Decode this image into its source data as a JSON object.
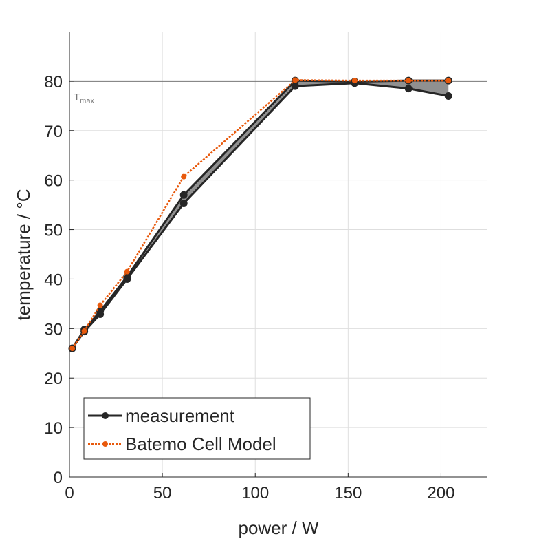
{
  "chart_data": {
    "type": "line",
    "xlabel": "power / W",
    "ylabel": "temperature / °C",
    "xlim": [
      0,
      225
    ],
    "ylim": [
      0,
      90
    ],
    "xticks": [
      0,
      50,
      100,
      150,
      200
    ],
    "yticks": [
      0,
      10,
      20,
      30,
      40,
      50,
      60,
      70,
      80
    ],
    "grid": true,
    "tmax": {
      "value": 80,
      "label": "T",
      "sub": "max"
    },
    "x": [
      1.5,
      8,
      16.5,
      31,
      61.5,
      121.5,
      153.5,
      182.5,
      204
    ],
    "series": [
      {
        "name": "measurement",
        "color": "#262626",
        "upper": [
          26,
          29.8,
          33.5,
          40.5,
          57.0,
          80.1,
          79.9,
          80.1,
          80.1
        ],
        "lower": [
          26,
          29.4,
          32.9,
          40.0,
          55.3,
          79.0,
          79.6,
          78.5,
          77.0
        ]
      },
      {
        "name": "Batemo Cell Model",
        "color": "#e8590c",
        "values": [
          26,
          29.5,
          34.7,
          41.5,
          60.7,
          80.2,
          80.1,
          80.1,
          80.1
        ]
      }
    ],
    "legend_placement": "bottom-left"
  }
}
